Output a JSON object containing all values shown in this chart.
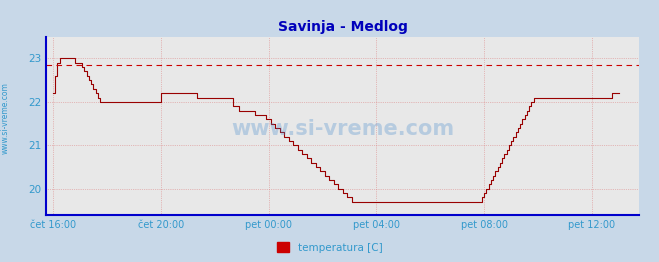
{
  "title": "Savinja - Medlog",
  "title_color": "#0000bb",
  "bg_color": "#c8d8e8",
  "plot_bg_color": "#e8e8e8",
  "line_color": "#990000",
  "dashed_line_color": "#cc0000",
  "dashed_line_y": 22.85,
  "axis_color": "#0000cc",
  "grid_color": "#dd8888",
  "text_color": "#3399cc",
  "watermark_color": "#4488cc",
  "yticks": [
    20,
    21,
    22,
    23
  ],
  "ylim": [
    19.4,
    23.5
  ],
  "xtick_labels": [
    "čet 16:00",
    "čet 20:00",
    "pet 00:00",
    "pet 04:00",
    "pet 08:00",
    "pet 12:00"
  ],
  "xtick_positions": [
    0,
    48,
    96,
    144,
    192,
    240
  ],
  "xlim": [
    -3,
    261
  ],
  "legend_label": "temperatura [C]",
  "legend_color": "#cc0000",
  "watermark": "www.si-vreme.com",
  "side_text": "www.si-vreme.com",
  "temperature_data": [
    22.2,
    22.6,
    22.9,
    23.0,
    23.0,
    23.0,
    23.0,
    23.0,
    23.0,
    23.0,
    22.9,
    22.9,
    22.9,
    22.8,
    22.7,
    22.6,
    22.5,
    22.4,
    22.3,
    22.2,
    22.1,
    22.0,
    22.0,
    22.0,
    22.0,
    22.0,
    22.0,
    22.0,
    22.0,
    22.0,
    22.0,
    22.0,
    22.0,
    22.0,
    22.0,
    22.0,
    22.0,
    22.0,
    22.0,
    22.0,
    22.0,
    22.0,
    22.0,
    22.0,
    22.0,
    22.0,
    22.0,
    22.0,
    22.2,
    22.2,
    22.2,
    22.2,
    22.2,
    22.2,
    22.2,
    22.2,
    22.2,
    22.2,
    22.2,
    22.2,
    22.2,
    22.2,
    22.2,
    22.2,
    22.1,
    22.1,
    22.1,
    22.1,
    22.1,
    22.1,
    22.1,
    22.1,
    22.1,
    22.1,
    22.1,
    22.1,
    22.1,
    22.1,
    22.1,
    22.1,
    21.9,
    21.9,
    21.9,
    21.8,
    21.8,
    21.8,
    21.8,
    21.8,
    21.8,
    21.8,
    21.7,
    21.7,
    21.7,
    21.7,
    21.7,
    21.6,
    21.6,
    21.5,
    21.5,
    21.4,
    21.4,
    21.3,
    21.3,
    21.2,
    21.2,
    21.1,
    21.1,
    21.0,
    21.0,
    20.9,
    20.9,
    20.8,
    20.8,
    20.7,
    20.7,
    20.6,
    20.6,
    20.5,
    20.5,
    20.4,
    20.4,
    20.3,
    20.3,
    20.2,
    20.2,
    20.1,
    20.1,
    20.0,
    20.0,
    19.9,
    19.9,
    19.8,
    19.8,
    19.7,
    19.7,
    19.7,
    19.7,
    19.7,
    19.7,
    19.7,
    19.7,
    19.7,
    19.7,
    19.7,
    19.7,
    19.7,
    19.7,
    19.7,
    19.7,
    19.7,
    19.7,
    19.7,
    19.7,
    19.7,
    19.7,
    19.7,
    19.7,
    19.7,
    19.7,
    19.7,
    19.7,
    19.7,
    19.7,
    19.7,
    19.7,
    19.7,
    19.7,
    19.7,
    19.7,
    19.7,
    19.7,
    19.7,
    19.7,
    19.7,
    19.7,
    19.7,
    19.7,
    19.7,
    19.7,
    19.7,
    19.7,
    19.7,
    19.7,
    19.7,
    19.7,
    19.7,
    19.7,
    19.7,
    19.7,
    19.7,
    19.7,
    19.8,
    19.9,
    20.0,
    20.1,
    20.2,
    20.3,
    20.4,
    20.5,
    20.6,
    20.7,
    20.8,
    20.9,
    21.0,
    21.1,
    21.2,
    21.3,
    21.4,
    21.5,
    21.6,
    21.7,
    21.8,
    21.9,
    22.0,
    22.1,
    22.1,
    22.1,
    22.1,
    22.1,
    22.1,
    22.1,
    22.1,
    22.1,
    22.1,
    22.1,
    22.1,
    22.1,
    22.1,
    22.1,
    22.1,
    22.1,
    22.1,
    22.1,
    22.1,
    22.1,
    22.1,
    22.1,
    22.1,
    22.1,
    22.1,
    22.1,
    22.1,
    22.1,
    22.1,
    22.1,
    22.1,
    22.1,
    22.1,
    22.1,
    22.2,
    22.2,
    22.2,
    22.2
  ]
}
